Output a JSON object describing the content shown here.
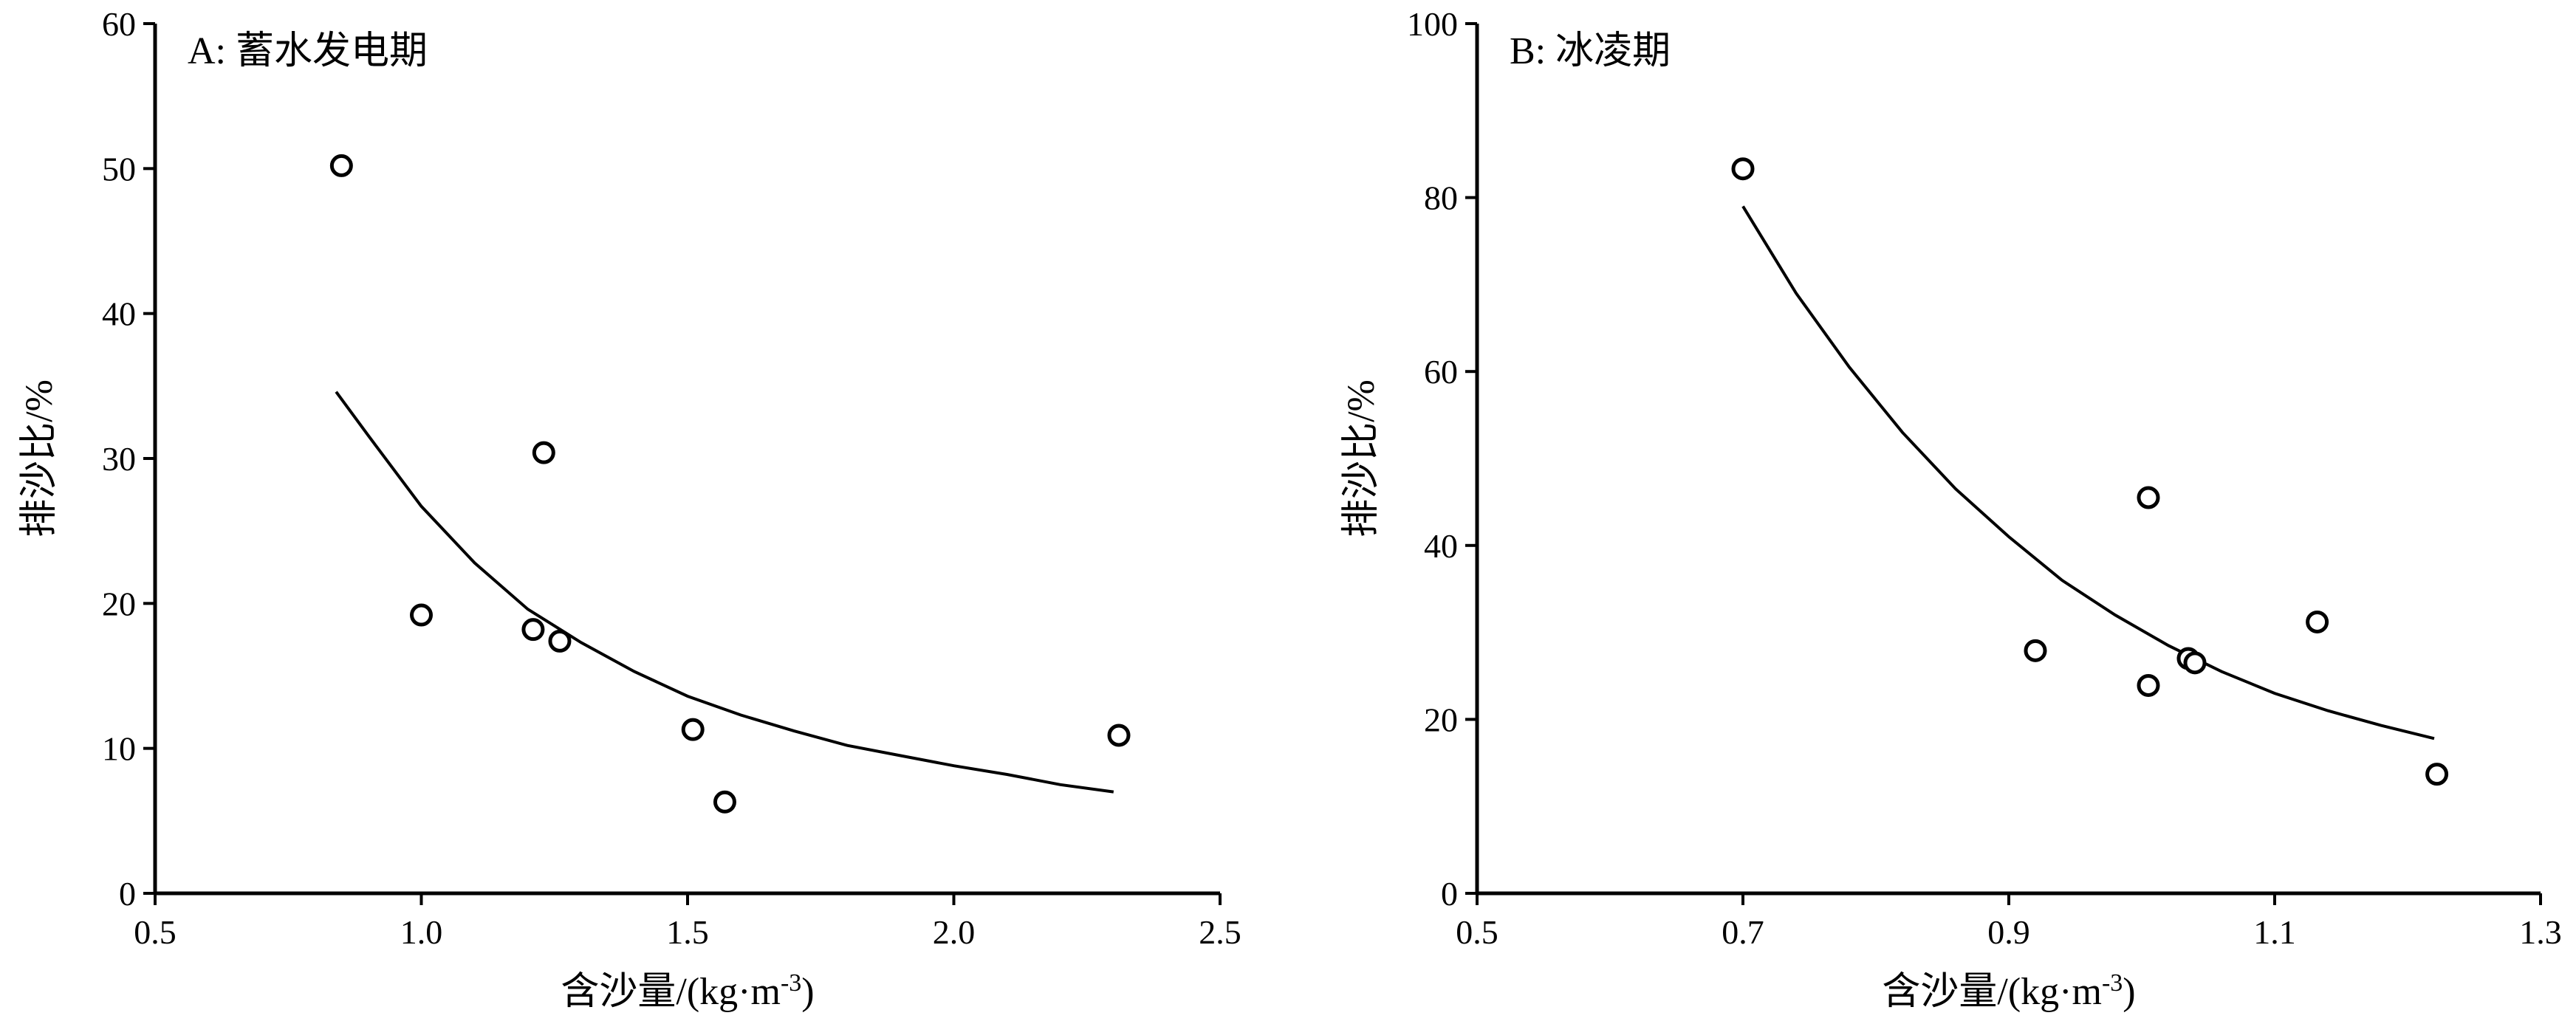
{
  "chart_data": [
    {
      "type": "scatter",
      "title": "A: 蓄水发电期",
      "xlabel": "含沙量/(kg·m",
      "xlabel_sup": "-3",
      "xlabel_close": ")",
      "ylabel": "排沙比/%",
      "xlim": [
        0.5,
        2.5
      ],
      "ylim": [
        0,
        60
      ],
      "xticks": [
        0.5,
        1.0,
        1.5,
        2.0,
        2.5
      ],
      "xtick_labels": [
        "0.5",
        "1.0",
        "1.5",
        "2.0",
        "2.5"
      ],
      "yticks": [
        0,
        10,
        20,
        30,
        40,
        50,
        60
      ],
      "ytick_labels": [
        "0",
        "10",
        "20",
        "30",
        "40",
        "50",
        "60"
      ],
      "grid": false,
      "series": [
        {
          "points": [
            {
              "x": 0.85,
              "y": 50.2
            },
            {
              "x": 1.0,
              "y": 19.2
            },
            {
              "x": 1.21,
              "y": 18.2
            },
            {
              "x": 1.23,
              "y": 30.4
            },
            {
              "x": 1.26,
              "y": 17.4
            },
            {
              "x": 1.51,
              "y": 11.3
            },
            {
              "x": 1.57,
              "y": 6.3
            },
            {
              "x": 2.31,
              "y": 10.9
            }
          ]
        }
      ],
      "fit_curve": {
        "x_range": [
          0.84,
          2.3
        ],
        "points": [
          {
            "x": 0.84,
            "y": 34.6
          },
          {
            "x": 0.9,
            "y": 31.6
          },
          {
            "x": 1.0,
            "y": 26.7
          },
          {
            "x": 1.1,
            "y": 22.8
          },
          {
            "x": 1.2,
            "y": 19.6
          },
          {
            "x": 1.3,
            "y": 17.3
          },
          {
            "x": 1.4,
            "y": 15.3
          },
          {
            "x": 1.5,
            "y": 13.6
          },
          {
            "x": 1.6,
            "y": 12.3
          },
          {
            "x": 1.7,
            "y": 11.2
          },
          {
            "x": 1.8,
            "y": 10.2
          },
          {
            "x": 1.9,
            "y": 9.5
          },
          {
            "x": 2.0,
            "y": 8.8
          },
          {
            "x": 2.1,
            "y": 8.2
          },
          {
            "x": 2.2,
            "y": 7.5
          },
          {
            "x": 2.3,
            "y": 7.0
          }
        ]
      }
    },
    {
      "type": "scatter",
      "title": "B: 冰凌期",
      "xlabel": "含沙量/(kg·m",
      "xlabel_sup": "-3",
      "xlabel_close": ")",
      "ylabel": "排沙比/%",
      "xlim": [
        0.5,
        1.3
      ],
      "ylim": [
        0,
        100
      ],
      "xticks": [
        0.5,
        0.7,
        0.9,
        1.1,
        1.3
      ],
      "xtick_labels": [
        "0.5",
        "0.7",
        "0.9",
        "1.1",
        "1.3"
      ],
      "yticks": [
        0,
        20,
        40,
        60,
        80,
        100
      ],
      "ytick_labels": [
        "0",
        "20",
        "40",
        "60",
        "80",
        "100"
      ],
      "grid": false,
      "series": [
        {
          "points": [
            {
              "x": 0.7,
              "y": 83.3
            },
            {
              "x": 0.92,
              "y": 27.9
            },
            {
              "x": 1.005,
              "y": 23.9
            },
            {
              "x": 1.005,
              "y": 45.5
            },
            {
              "x": 1.035,
              "y": 27.0
            },
            {
              "x": 1.04,
              "y": 26.5
            },
            {
              "x": 1.132,
              "y": 31.2
            },
            {
              "x": 1.222,
              "y": 13.7
            }
          ]
        }
      ],
      "fit_curve": {
        "x_range": [
          0.7,
          1.22
        ],
        "points": [
          {
            "x": 0.7,
            "y": 79.0
          },
          {
            "x": 0.74,
            "y": 69.0
          },
          {
            "x": 0.78,
            "y": 60.5
          },
          {
            "x": 0.82,
            "y": 53.0
          },
          {
            "x": 0.86,
            "y": 46.5
          },
          {
            "x": 0.9,
            "y": 41.0
          },
          {
            "x": 0.94,
            "y": 36.0
          },
          {
            "x": 0.98,
            "y": 32.0
          },
          {
            "x": 1.02,
            "y": 28.5
          },
          {
            "x": 1.06,
            "y": 25.5
          },
          {
            "x": 1.1,
            "y": 23.0
          },
          {
            "x": 1.14,
            "y": 21.0
          },
          {
            "x": 1.18,
            "y": 19.3
          },
          {
            "x": 1.22,
            "y": 17.8
          }
        ]
      }
    }
  ]
}
